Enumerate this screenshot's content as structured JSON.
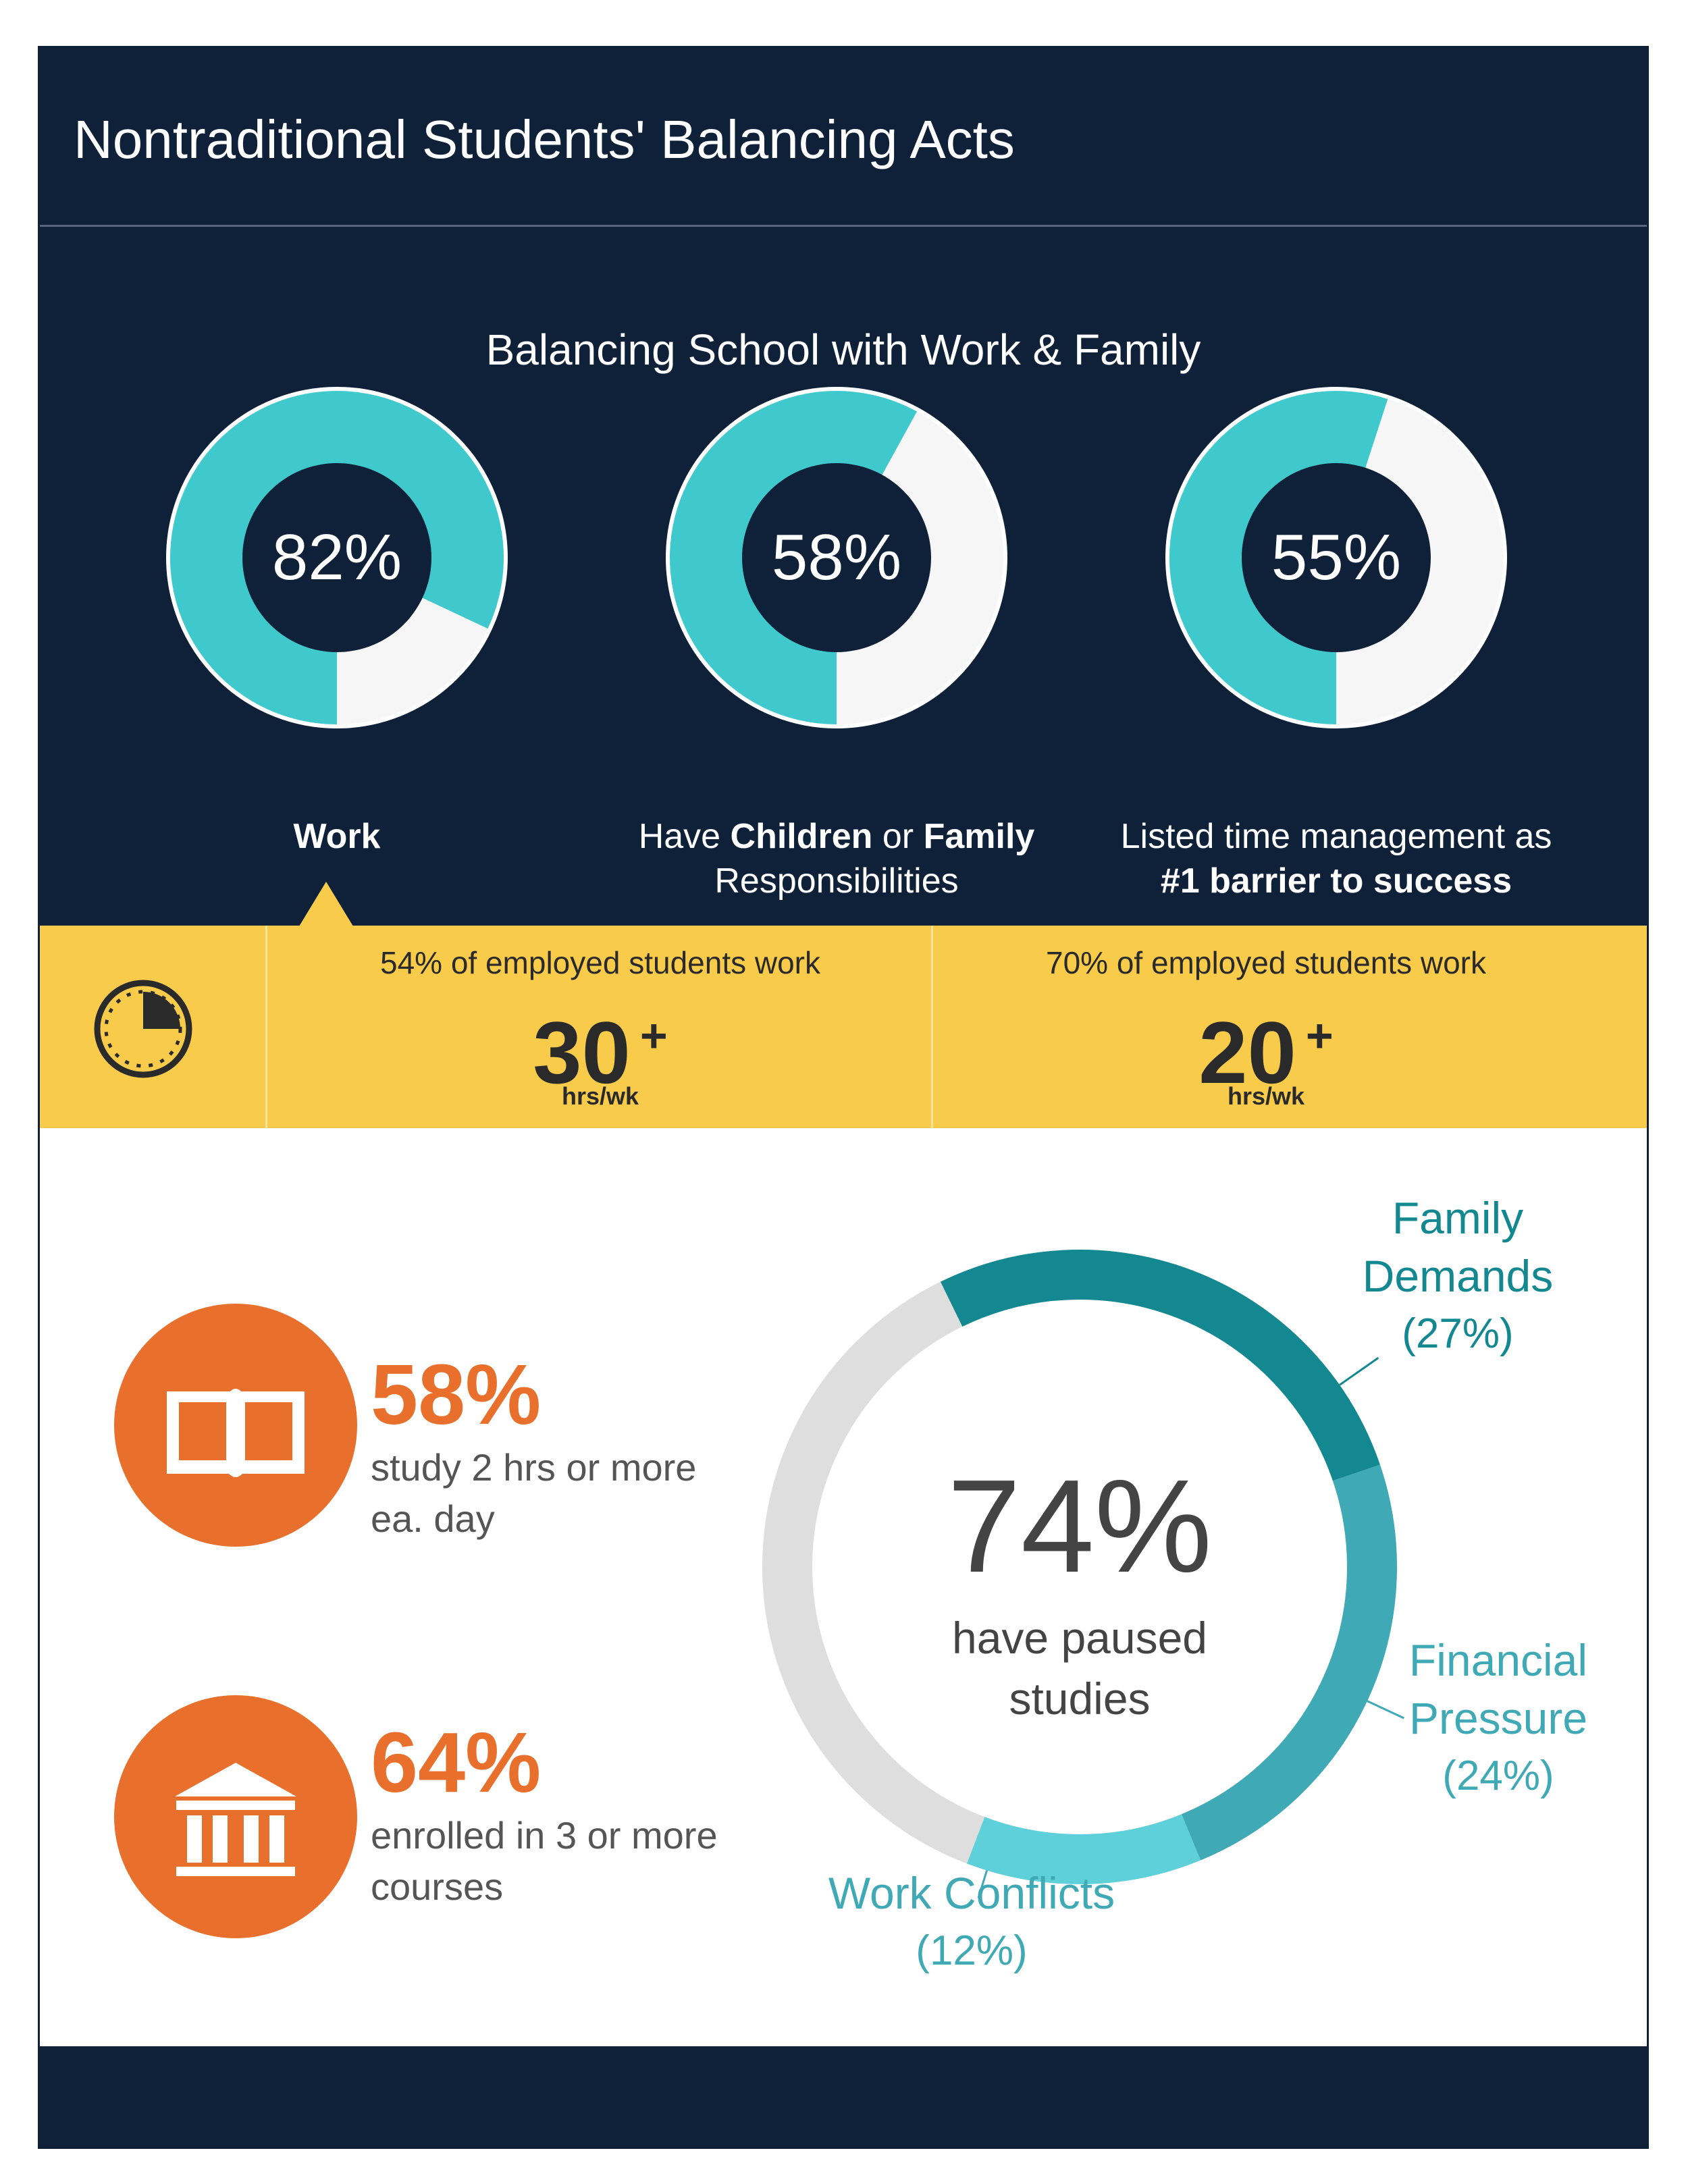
{
  "header": {
    "title": "Nontraditional Students' Balancing Acts"
  },
  "section": {
    "subtitle": "Balancing School with Work & Family"
  },
  "colors": {
    "navy": "#0f2139",
    "teal": "#40c9cc",
    "light": "#f6f6f6",
    "yellow": "#f8cb4b",
    "orange": "#e86f2c",
    "seg_family": "#138891",
    "seg_financial": "#3fa9b5",
    "seg_work": "#5ed0da",
    "seg_rest": "#dedede"
  },
  "donuts": [
    {
      "value": 82,
      "value_label": "82%",
      "label_parts": [
        {
          "text": "Work",
          "bold": true
        }
      ]
    },
    {
      "value": 58,
      "value_label": "58%",
      "label_parts": [
        {
          "text": "Have ",
          "bold": false
        },
        {
          "text": "Children",
          "bold": true
        },
        {
          "text": " or ",
          "bold": false
        },
        {
          "text": "Family",
          "bold": true
        },
        {
          "text": "\nResponsibilities",
          "bold": false
        }
      ]
    },
    {
      "value": 55,
      "value_label": "55%",
      "label_parts": [
        {
          "text": "Listed time management as\n",
          "bold": false
        },
        {
          "text": "#1 barrier to success",
          "bold": true
        }
      ]
    }
  ],
  "work_hours": {
    "icon": "clock-icon",
    "stats": [
      {
        "text": "54% of employed students work",
        "number": "30",
        "plus": "+",
        "unit": "hrs/wk"
      },
      {
        "text": "70% of employed students work",
        "number": "20",
        "plus": "+",
        "unit": "hrs/wk"
      }
    ]
  },
  "study_stats": [
    {
      "icon": "book-icon",
      "value": "58%",
      "text": "study 2 hrs or more ea. day"
    },
    {
      "icon": "institution-icon",
      "value": "64%",
      "text": "enrolled in 3 or more courses"
    }
  ],
  "chart_data": {
    "type": "pie",
    "total_value": "74%",
    "total_text": "have paused studies",
    "segments": [
      {
        "name": "Family Demands",
        "value": 27,
        "label": "(27%)"
      },
      {
        "name": "Financial Pressure",
        "value": 24,
        "label": "(24%)"
      },
      {
        "name": "Work Conflicts",
        "value": 12,
        "label": "(12%)"
      }
    ]
  }
}
